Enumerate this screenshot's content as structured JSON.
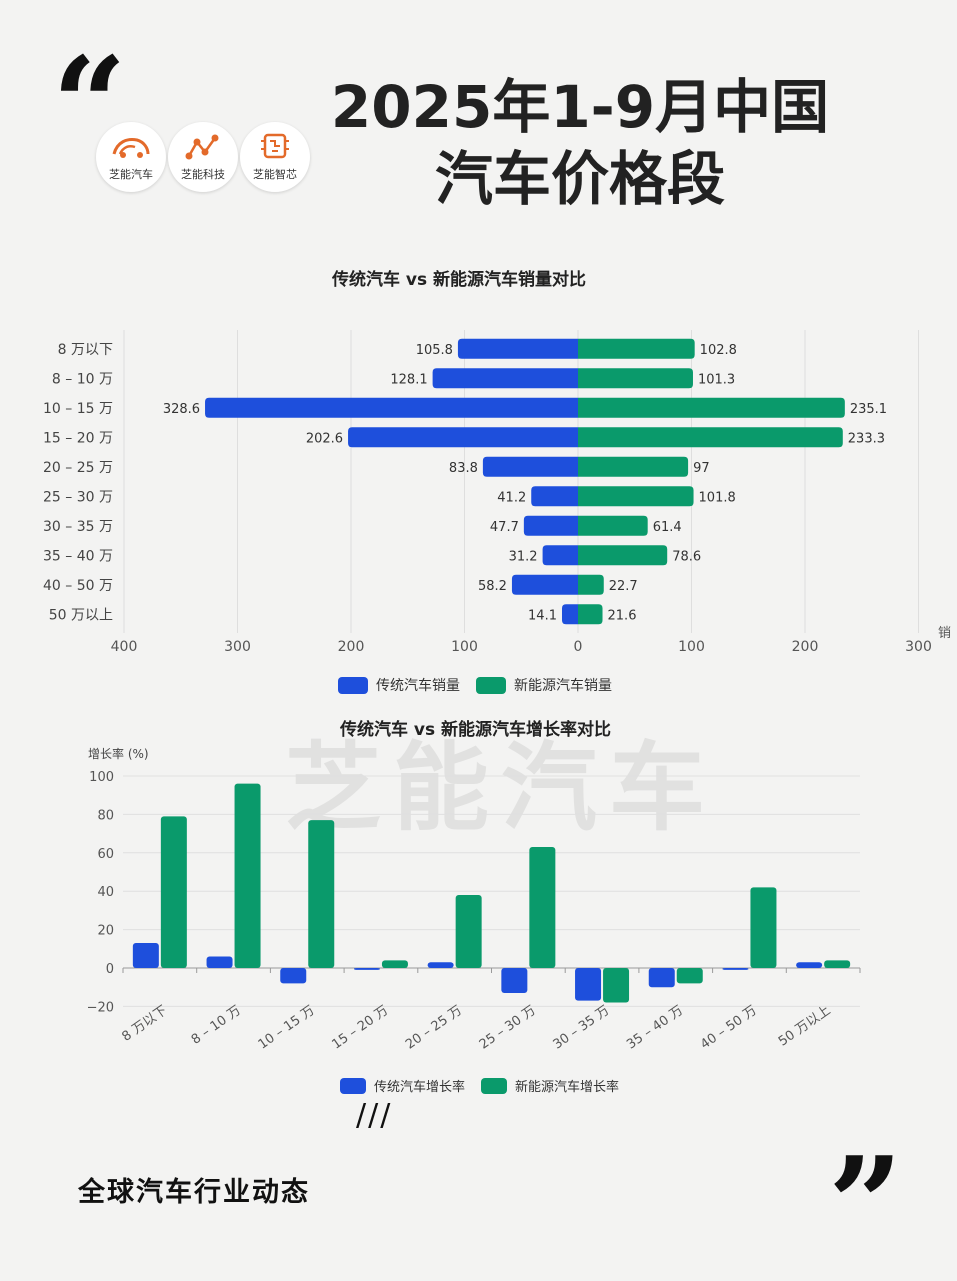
{
  "header": {
    "title_line1": "2025年1-9月中国",
    "title_line2": "汽车价格段",
    "logos": [
      "芝能汽车",
      "芝能科技",
      "芝能智芯"
    ],
    "watermark": "芝能汽车"
  },
  "colors": {
    "traditional": "#1e4fdc",
    "nev": "#0a9a6b",
    "logo_orange": "#e36a2a"
  },
  "chart_data": [
    {
      "type": "bar",
      "orientation": "horizontal-diverging",
      "title": "传统汽车 vs 新能源汽车销量对比",
      "categories": [
        "8 万以下",
        "8 – 10 万",
        "10 – 15 万",
        "15 – 20 万",
        "20 – 25 万",
        "25 – 30 万",
        "30 – 35 万",
        "35 – 40 万",
        "40 – 50 万",
        "50 万以上"
      ],
      "series": [
        {
          "name": "传统汽车销量",
          "values": [
            105.8,
            128.1,
            328.6,
            202.6,
            83.8,
            41.2,
            47.7,
            31.2,
            58.2,
            14.1
          ]
        },
        {
          "name": "新能源汽车销量",
          "values": [
            102.8,
            101.3,
            235.1,
            233.3,
            97,
            101.8,
            61.4,
            78.6,
            22.7,
            21.6
          ]
        }
      ],
      "xlim_left": [
        400,
        0
      ],
      "xlim_right": [
        0,
        300
      ],
      "left_ticks": [
        "400",
        "300",
        "200",
        "100",
        "0"
      ],
      "right_ticks": [
        "100",
        "200",
        "300"
      ],
      "axis_label_clipped": "销",
      "grid": true,
      "legend": "bottom"
    },
    {
      "type": "bar",
      "title": "传统汽车 vs 新能源汽车增长率对比",
      "ylabel": "增长率 (%)",
      "categories": [
        "8 万以下",
        "8 – 10 万",
        "10 – 15 万",
        "15 – 20 万",
        "20 – 25 万",
        "25 – 30 万",
        "30 – 35 万",
        "35 – 40 万",
        "40 – 50 万",
        "50 万以上"
      ],
      "series": [
        {
          "name": "传统汽车增长率",
          "values": [
            13,
            6,
            -8,
            -1,
            3,
            -13,
            -17,
            -10,
            -1,
            3
          ]
        },
        {
          "name": "新能源汽车增长率",
          "values": [
            79,
            96,
            77,
            4,
            38,
            63,
            -18,
            -8,
            42,
            4
          ]
        }
      ],
      "ylim": [
        -20,
        100
      ],
      "yticks": [
        "−20",
        "0",
        "20",
        "40",
        "60",
        "80",
        "100"
      ],
      "grid": true,
      "legend": "bottom"
    }
  ],
  "footer": {
    "text": "全球汽车行业动态",
    "slashes": "///"
  }
}
